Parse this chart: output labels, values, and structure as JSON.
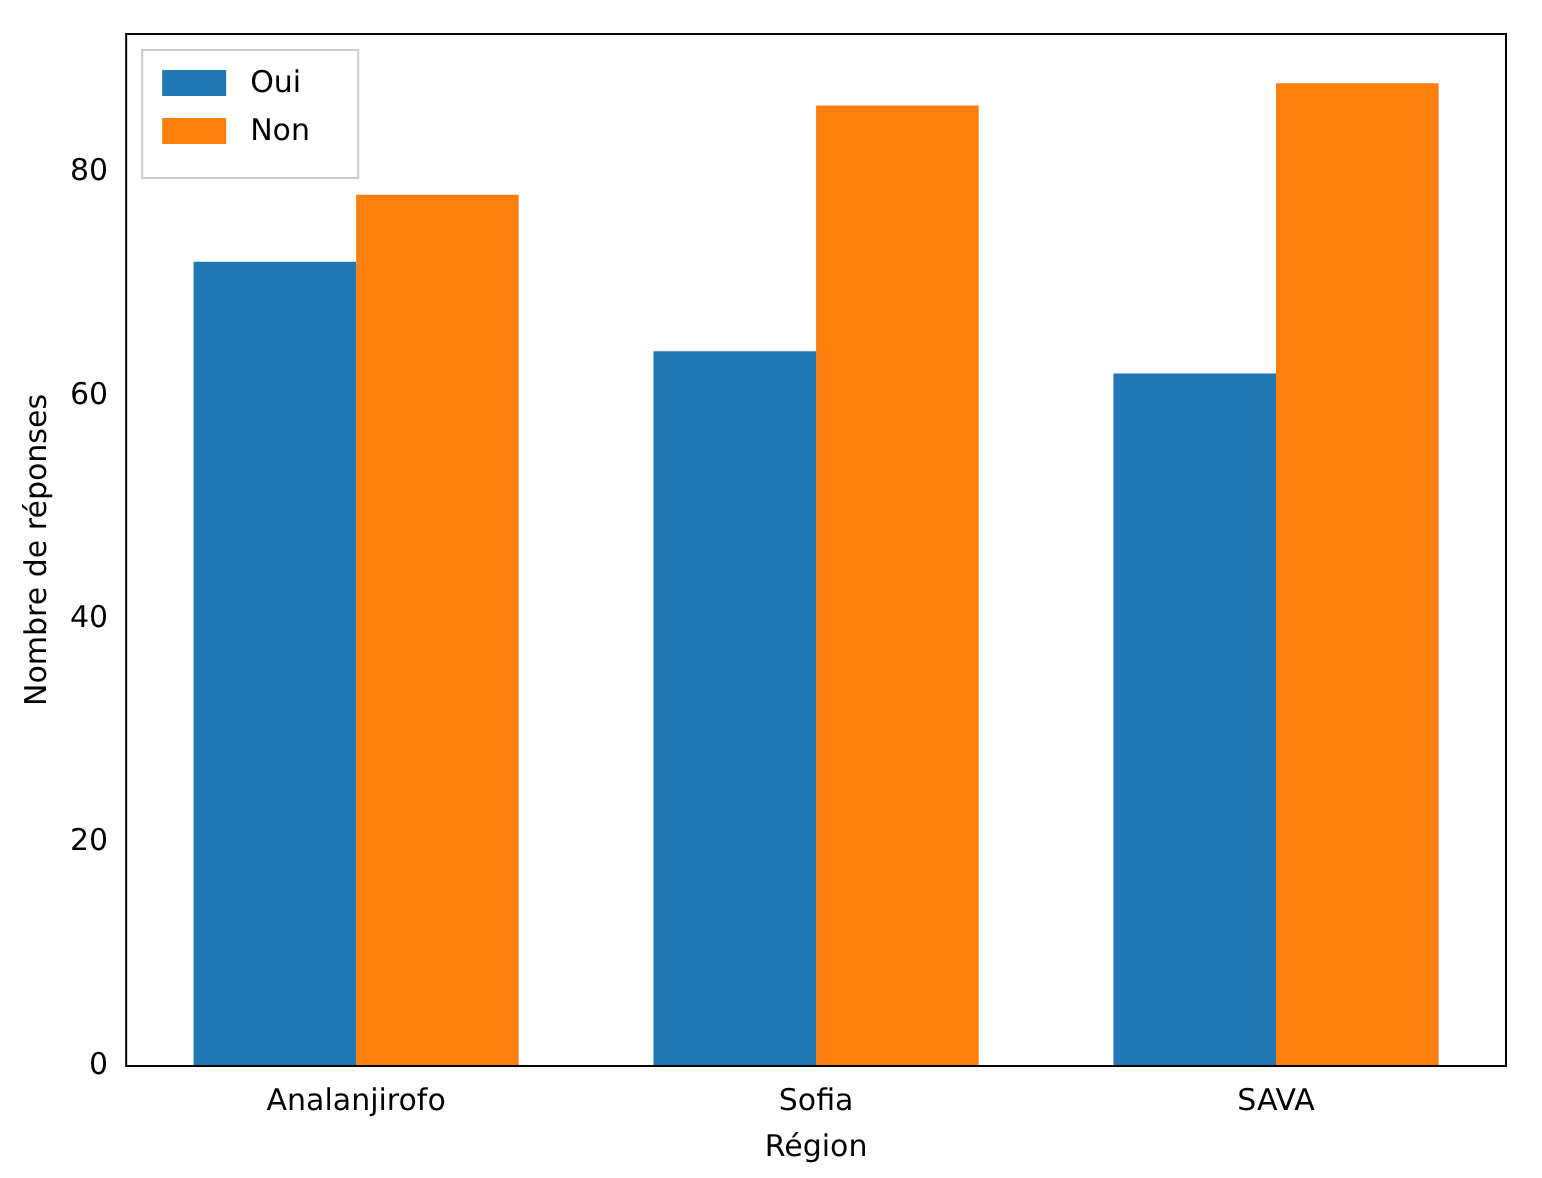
{
  "chart_data": {
    "type": "bar",
    "xlabel": "Région",
    "ylabel": "Nombre de réponses",
    "categories": [
      "Analanjirofo",
      "Sofia",
      "SAVA"
    ],
    "series": [
      {
        "name": "Oui",
        "color": "#1f77b4",
        "values": [
          72,
          64,
          62
        ]
      },
      {
        "name": "Non",
        "color": "#ff7f0e",
        "values": [
          78,
          86,
          88
        ]
      }
    ],
    "ylim": [
      0,
      92.4
    ],
    "yticks": [
      0,
      20,
      40,
      60,
      80
    ],
    "grid": false,
    "legend": "top left"
  }
}
